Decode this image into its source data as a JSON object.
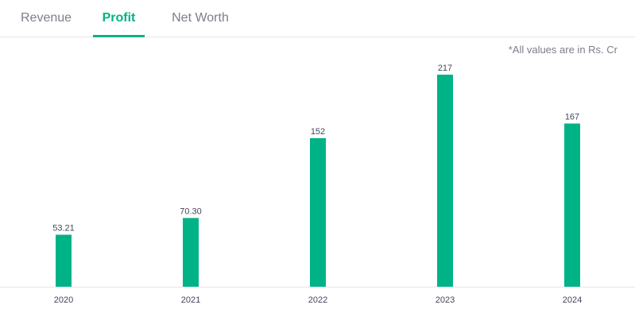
{
  "tabs": [
    {
      "label": "Revenue",
      "active": false
    },
    {
      "label": "Profit",
      "active": true
    },
    {
      "label": "Net Worth",
      "active": false
    }
  ],
  "note": "*All values are in Rs. Cr",
  "colors": {
    "accent": "#00b386",
    "text": "#44475b",
    "muted": "#7c7e8c",
    "axis": "#e6e6e9"
  },
  "chart_data": {
    "type": "bar",
    "categories": [
      "2020",
      "2021",
      "2022",
      "2023",
      "2024"
    ],
    "values": [
      53.21,
      70.3,
      152,
      217,
      167
    ],
    "value_labels": [
      "53.21",
      "70.30",
      "152",
      "217",
      "167"
    ],
    "ylim": [
      0,
      217
    ],
    "grid": false,
    "legend": "none"
  }
}
